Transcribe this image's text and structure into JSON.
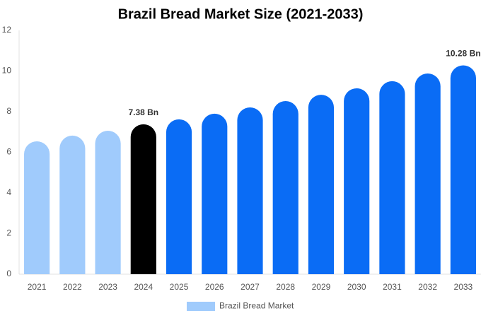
{
  "chart_data": {
    "type": "bar",
    "title": "Brazil Bread Market Size (2021-2033)",
    "categories": [
      "2021",
      "2022",
      "2023",
      "2024",
      "2025",
      "2026",
      "2027",
      "2028",
      "2029",
      "2030",
      "2031",
      "2032",
      "2033"
    ],
    "series": [
      {
        "name": "Brazil Bread Market",
        "color": "#a0cbfc",
        "colors": [
          "#a0cbfc",
          "#a0cbfc",
          "#a0cbfc",
          "#000000",
          "#0a6cf5",
          "#0a6cf5",
          "#0a6cf5",
          "#0a6cf5",
          "#0a6cf5",
          "#0a6cf5",
          "#0a6cf5",
          "#0a6cf5",
          "#0a6cf5"
        ],
        "values": [
          6.54,
          6.82,
          7.06,
          7.38,
          7.62,
          7.9,
          8.21,
          8.52,
          8.83,
          9.15,
          9.5,
          9.88,
          10.28
        ],
        "value_labels": [
          null,
          null,
          null,
          "7.38 Bn",
          null,
          null,
          null,
          null,
          null,
          null,
          null,
          null,
          "10.28 Bn"
        ]
      }
    ],
    "ylim": [
      0,
      12
    ],
    "yticks": [
      0,
      2,
      4,
      6,
      8,
      10,
      12
    ],
    "grid": false
  }
}
